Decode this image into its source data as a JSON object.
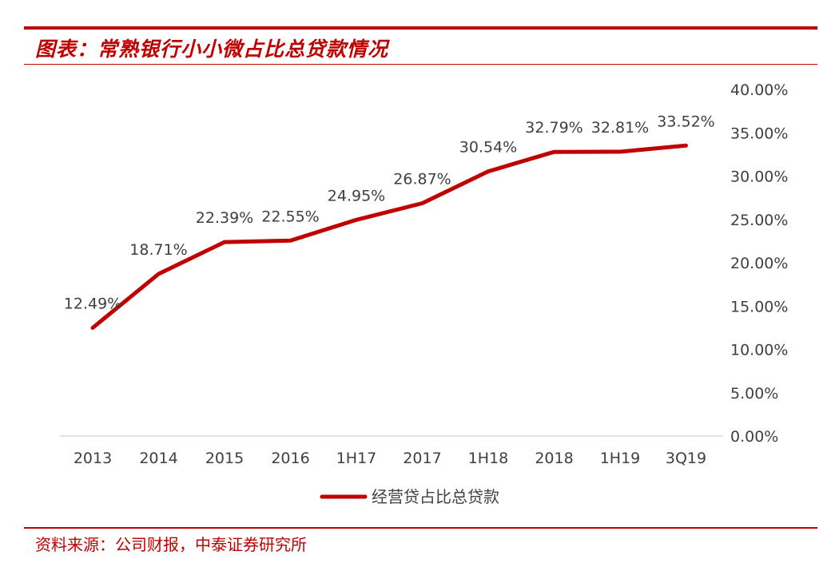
{
  "header": {
    "title": "图表：常熟银行小小微占比总贷款情况"
  },
  "footer": {
    "source": "资料来源：公司财报，中泰证券研究所"
  },
  "colors": {
    "accent": "#c00000",
    "line": "#c00000",
    "text": "#404040",
    "axis": "#d9d9d9"
  },
  "chart_data": {
    "type": "line",
    "title": "",
    "xlabel": "",
    "ylabel": "",
    "categories": [
      "2013",
      "2014",
      "2015",
      "2016",
      "1H17",
      "2017",
      "1H18",
      "2018",
      "1H19",
      "3Q19"
    ],
    "series": [
      {
        "name": "经营贷占比总贷款",
        "values": [
          12.49,
          18.71,
          22.39,
          22.55,
          24.95,
          26.87,
          30.54,
          32.79,
          32.81,
          33.52
        ],
        "labels": [
          "12.49%",
          "18.71%",
          "22.39%",
          "22.55%",
          "24.95%",
          "26.87%",
          "30.54%",
          "32.79%",
          "32.81%",
          "33.52%"
        ]
      }
    ],
    "ylim": [
      0,
      40
    ],
    "yticks": [
      "0.00%",
      "5.00%",
      "10.00%",
      "15.00%",
      "20.00%",
      "25.00%",
      "30.00%",
      "35.00%",
      "40.00%"
    ],
    "y_axis_position": "right",
    "grid": false,
    "legend": "bottom"
  }
}
